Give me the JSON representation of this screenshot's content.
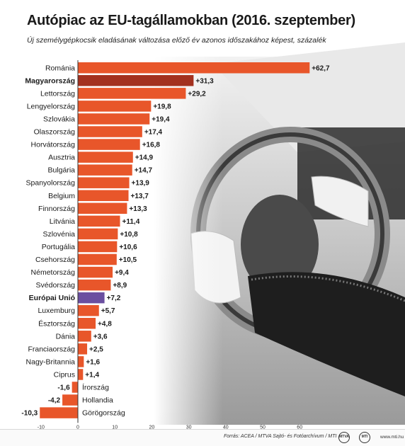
{
  "header": {
    "title": "Autópiac az EU-tagállamokban (2016. szeptember)",
    "subtitle": "Új személygépkocsik eladásának változása előző év azonos időszakához képest, százalék"
  },
  "footer": {
    "source": "Forrás: ACEA / MTVA Sajtó- és Fotóarchívum / MTI",
    "logo_mtva": "MTVA",
    "logo_mti": "MTI",
    "url": "www.mti.hu"
  },
  "colors": {
    "default_bar": "#e8562a",
    "hungary_bar": "#a3311f",
    "eu_bar": "#6b4fa0",
    "text": "#1a1a1a"
  },
  "chart_data": {
    "type": "bar",
    "orientation": "horizontal",
    "title": "Autópiac az EU-tagállamokban (2016. szeptember)",
    "subtitle": "Új személygépkocsik eladásának változása előző év azonos időszakához képest, százalék",
    "xlim": [
      -10,
      70
    ],
    "xticks": [
      -10,
      0,
      10,
      20,
      30,
      40,
      50,
      60
    ],
    "grid": false,
    "categories": [
      "Románia",
      "Magyarország",
      "Lettország",
      "Lengyelország",
      "Szlovákia",
      "Olaszország",
      "Horvátország",
      "Ausztria",
      "Bulgária",
      "Spanyolország",
      "Belgium",
      "Finnország",
      "Litvánia",
      "Szlovénia",
      "Portugália",
      "Csehország",
      "Németország",
      "Svédország",
      "Európai Unió",
      "Luxemburg",
      "Észtország",
      "Dánia",
      "Franciaország",
      "Nagy-Britannia",
      "Ciprus",
      "Írország",
      "Hollandia",
      "Görögország"
    ],
    "values": [
      62.7,
      31.3,
      29.2,
      19.8,
      19.4,
      17.4,
      16.8,
      14.9,
      14.7,
      13.9,
      13.7,
      13.3,
      11.4,
      10.8,
      10.6,
      10.5,
      9.4,
      8.9,
      7.2,
      5.7,
      4.8,
      3.6,
      2.5,
      1.6,
      1.4,
      -1.6,
      -4.2,
      -10.3
    ],
    "value_labels": [
      "+62,7",
      "+31,3",
      "+29,2",
      "+19,8",
      "+19,4",
      "+17,4",
      "+16,8",
      "+14,9",
      "+14,7",
      "+13,9",
      "+13,7",
      "+13,3",
      "+11,4",
      "+10,8",
      "+10,6",
      "+10,5",
      "+9,4",
      "+8,9",
      "+7,2",
      "+5,7",
      "+4,8",
      "+3,6",
      "+2,5",
      "+1,6",
      "+1,4",
      "-1,6",
      "-4,2",
      "-10,3"
    ],
    "highlighted": {
      "Magyarország": "hungary_bar",
      "Európai Unió": "eu_bar"
    },
    "bold_categories": [
      "Magyarország",
      "Európai Unió"
    ]
  }
}
